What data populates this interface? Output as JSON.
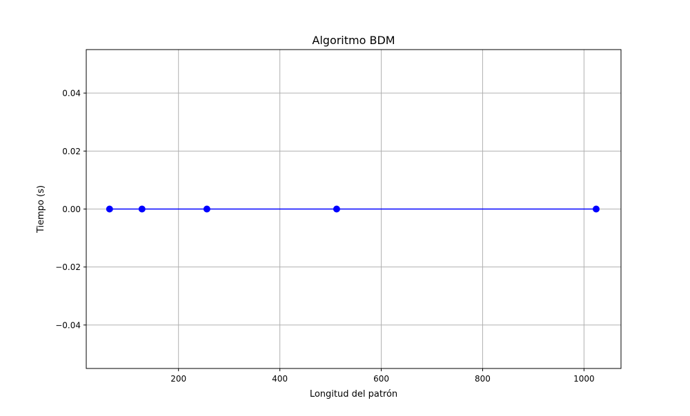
{
  "chart_data": {
    "type": "line",
    "title": "Algoritmo BDM",
    "xlabel": "Longitud del patrón",
    "ylabel": "Tiempo (s)",
    "xlim": [
      18,
      1073
    ],
    "ylim": [
      -0.055,
      0.055
    ],
    "xticks": [
      200,
      400,
      600,
      800,
      1000
    ],
    "xtick_labels": [
      "200",
      "400",
      "600",
      "800",
      "1000"
    ],
    "yticks": [
      -0.04,
      -0.02,
      0.0,
      0.02,
      0.04
    ],
    "ytick_labels": [
      "−0.04",
      "−0.02",
      "0.00",
      "0.02",
      "0.04"
    ],
    "grid": true,
    "series": [
      {
        "color": "#0000ff",
        "marker": "circle",
        "x": [
          64,
          128,
          256,
          512,
          1024
        ],
        "y": [
          0,
          0,
          0,
          0,
          0
        ]
      }
    ]
  }
}
